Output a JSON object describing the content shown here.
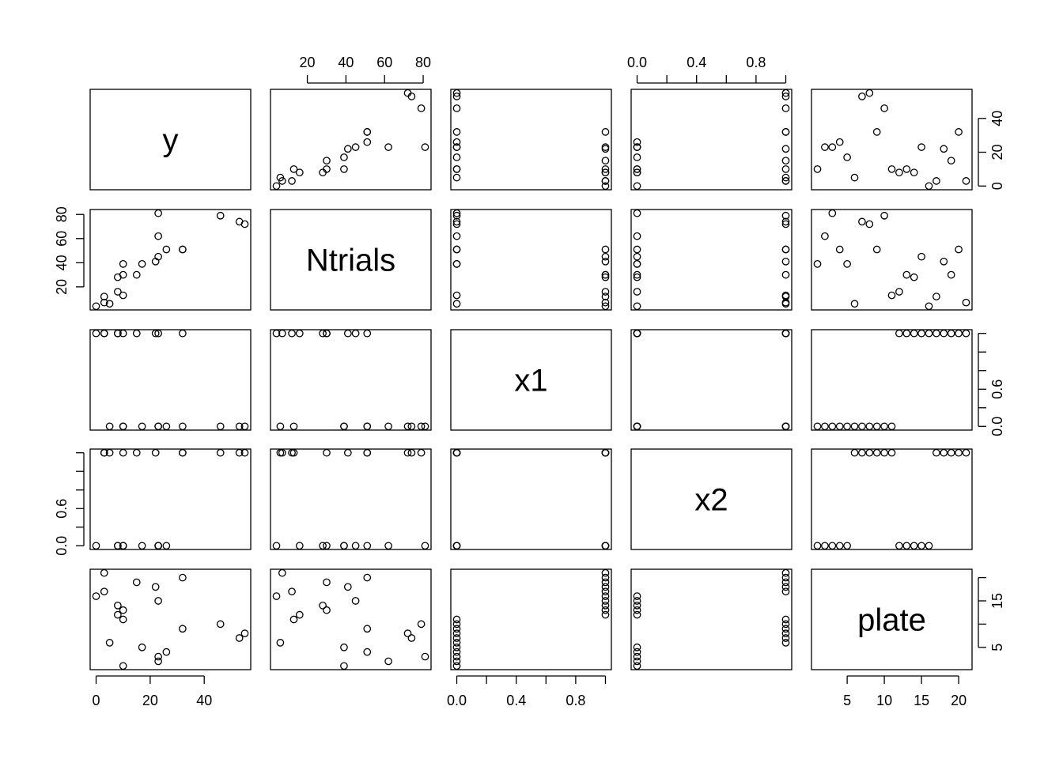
{
  "chart_data": {
    "type": "scatter-matrix",
    "title": "",
    "variables": [
      "y",
      "Ntrials",
      "x1",
      "x2",
      "plate"
    ],
    "ranges": {
      "y": [
        0,
        55
      ],
      "Ntrials": [
        4,
        81
      ],
      "x1": [
        0,
        1
      ],
      "x2": [
        0,
        1
      ],
      "plate": [
        1,
        21
      ]
    },
    "ticks": {
      "y": [
        0,
        20,
        40
      ],
      "Ntrials": [
        20,
        40,
        60,
        80
      ],
      "x1": [
        0.0,
        0.2,
        0.4,
        0.6,
        0.8,
        1.0
      ],
      "x2": [
        0.0,
        0.2,
        0.4,
        0.6,
        0.8,
        1.0
      ],
      "plate": [
        5,
        10,
        15,
        20
      ]
    },
    "tick_labels": {
      "y": [
        "0",
        "20",
        "40"
      ],
      "Ntrials": [
        "20",
        "40",
        "60",
        "80"
      ],
      "x1": [
        "0.0",
        "",
        "0.6",
        "",
        "",
        ""
      ],
      "x2": [
        "0.0",
        "",
        "0.6",
        "",
        "",
        ""
      ],
      "plate_bottom": [
        "5",
        "10",
        "15",
        "20"
      ],
      "plate_right": [
        "5",
        "",
        "15",
        ""
      ],
      "x1_bottom": [
        "0.0",
        "",
        "0.4",
        "",
        "0.8",
        ""
      ],
      "x2_top": [
        "0.0",
        "",
        "0.4",
        "",
        "0.8",
        ""
      ]
    },
    "grid": false,
    "legend": "none",
    "observations": [
      {
        "plate": 1,
        "y": 10,
        "Ntrials": 39,
        "x1": 0,
        "x2": 0
      },
      {
        "plate": 2,
        "y": 23,
        "Ntrials": 62,
        "x1": 0,
        "x2": 0
      },
      {
        "plate": 3,
        "y": 23,
        "Ntrials": 81,
        "x1": 0,
        "x2": 0
      },
      {
        "plate": 4,
        "y": 26,
        "Ntrials": 51,
        "x1": 0,
        "x2": 0
      },
      {
        "plate": 5,
        "y": 17,
        "Ntrials": 39,
        "x1": 0,
        "x2": 0
      },
      {
        "plate": 6,
        "y": 5,
        "Ntrials": 6,
        "x1": 0,
        "x2": 1
      },
      {
        "plate": 7,
        "y": 53,
        "Ntrials": 74,
        "x1": 0,
        "x2": 1
      },
      {
        "plate": 8,
        "y": 55,
        "Ntrials": 72,
        "x1": 0,
        "x2": 1
      },
      {
        "plate": 9,
        "y": 32,
        "Ntrials": 51,
        "x1": 0,
        "x2": 1
      },
      {
        "plate": 10,
        "y": 46,
        "Ntrials": 79,
        "x1": 0,
        "x2": 1
      },
      {
        "plate": 11,
        "y": 10,
        "Ntrials": 13,
        "x1": 0,
        "x2": 1
      },
      {
        "plate": 12,
        "y": 8,
        "Ntrials": 16,
        "x1": 1,
        "x2": 0
      },
      {
        "plate": 13,
        "y": 10,
        "Ntrials": 30,
        "x1": 1,
        "x2": 0
      },
      {
        "plate": 14,
        "y": 8,
        "Ntrials": 28,
        "x1": 1,
        "x2": 0
      },
      {
        "plate": 15,
        "y": 23,
        "Ntrials": 45,
        "x1": 1,
        "x2": 0
      },
      {
        "plate": 16,
        "y": 0,
        "Ntrials": 4,
        "x1": 1,
        "x2": 0
      },
      {
        "plate": 17,
        "y": 3,
        "Ntrials": 12,
        "x1": 1,
        "x2": 1
      },
      {
        "plate": 18,
        "y": 22,
        "Ntrials": 41,
        "x1": 1,
        "x2": 1
      },
      {
        "plate": 19,
        "y": 15,
        "Ntrials": 30,
        "x1": 1,
        "x2": 1
      },
      {
        "plate": 20,
        "y": 32,
        "Ntrials": 51,
        "x1": 1,
        "x2": 1
      },
      {
        "plate": 21,
        "y": 3,
        "Ntrials": 7,
        "x1": 1,
        "x2": 1
      }
    ]
  }
}
